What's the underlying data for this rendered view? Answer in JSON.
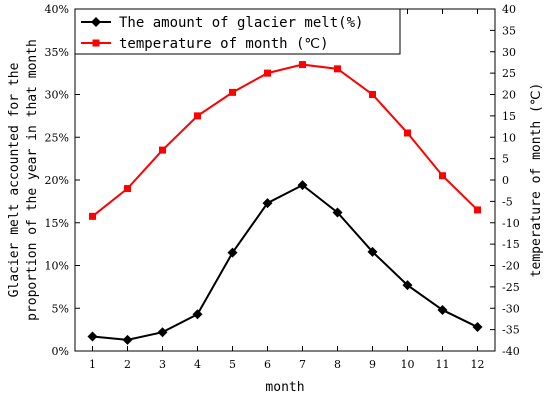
{
  "chart_data": {
    "type": "line",
    "xlabel": "month",
    "ylabel_left": "Glacier melt accounted for the proportion of the year in that month",
    "ylabel_left_lines": [
      "Glacier melt accounted for the",
      "proportion of the year in that month"
    ],
    "ylabel_right": "temperature of month (℃)",
    "categories": [
      "1",
      "2",
      "3",
      "4",
      "5",
      "6",
      "7",
      "8",
      "9",
      "10",
      "11",
      "12"
    ],
    "x": [
      1,
      2,
      3,
      4,
      5,
      6,
      7,
      8,
      9,
      10,
      11,
      12
    ],
    "xlim": [
      0.5,
      12.5
    ],
    "ylim_left": [
      0,
      40
    ],
    "ylim_right": [
      -40,
      40
    ],
    "left_ticks": [
      "0%",
      "5%",
      "10%",
      "15%",
      "20%",
      "25%",
      "30%",
      "35%",
      "40%"
    ],
    "right_ticks": [
      "-40",
      "-35",
      "-30",
      "-25",
      "-20",
      "-15",
      "-10",
      "-5",
      "0",
      "5",
      "10",
      "15",
      "20",
      "25",
      "30",
      "35",
      "40"
    ],
    "series": [
      {
        "name": "The amount of glacier melt(%)",
        "axis": "left",
        "color": "#000000",
        "marker": "diamond",
        "values": [
          1.7,
          1.3,
          2.2,
          4.3,
          11.5,
          17.3,
          19.4,
          16.2,
          11.6,
          7.7,
          4.8,
          2.8
        ]
      },
      {
        "name": "temperature of month (℃)",
        "axis": "right",
        "color": "#ff0000",
        "marker": "square",
        "values": [
          -8.5,
          -2.0,
          7.0,
          15.0,
          20.5,
          25.0,
          27.0,
          26.0,
          20.0,
          11.0,
          1.0,
          -7.0
        ]
      }
    ],
    "grid": false,
    "legend": "top-left"
  }
}
